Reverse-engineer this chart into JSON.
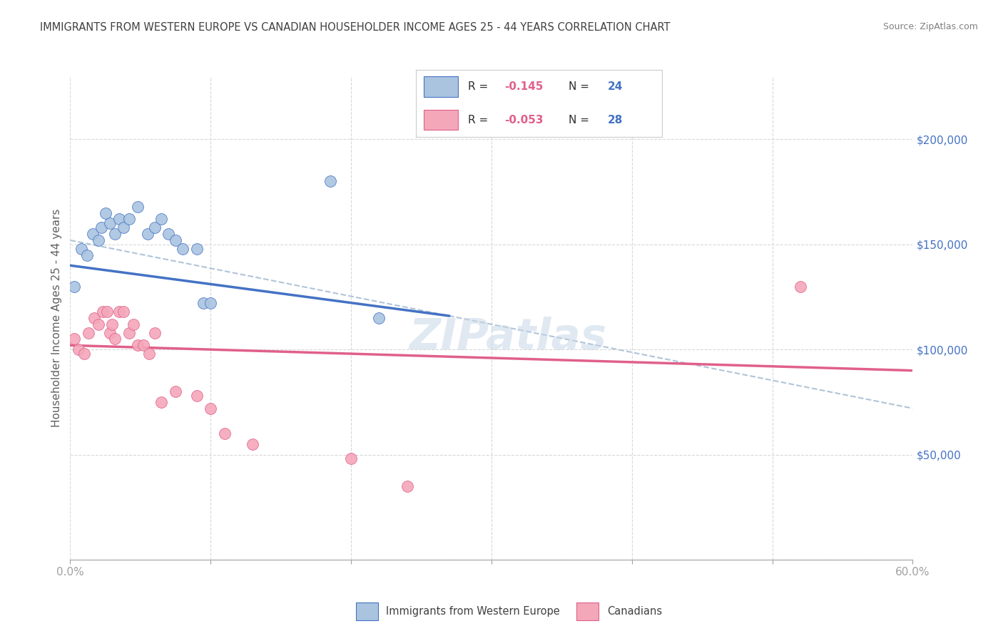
{
  "title": "IMMIGRANTS FROM WESTERN EUROPE VS CANADIAN HOUSEHOLDER INCOME AGES 25 - 44 YEARS CORRELATION CHART",
  "source": "Source: ZipAtlas.com",
  "ylabel": "Householder Income Ages 25 - 44 years",
  "xlim": [
    0.0,
    0.6
  ],
  "ylim": [
    0,
    230000
  ],
  "xticks": [
    0.0,
    0.1,
    0.2,
    0.3,
    0.4,
    0.5,
    0.6
  ],
  "xticklabels": [
    "0.0%",
    "",
    "",
    "",
    "",
    "",
    "60.0%"
  ],
  "yticks_right": [
    0,
    50000,
    100000,
    150000,
    200000
  ],
  "ytick_labels_right": [
    "",
    "$50,000",
    "$100,000",
    "$150,000",
    "$200,000"
  ],
  "legend1_R": "-0.145",
  "legend1_N": "24",
  "legend2_R": "-0.053",
  "legend2_N": "28",
  "blue_scatter_x": [
    0.003,
    0.008,
    0.012,
    0.016,
    0.02,
    0.022,
    0.025,
    0.028,
    0.032,
    0.035,
    0.038,
    0.042,
    0.048,
    0.055,
    0.06,
    0.065,
    0.07,
    0.075,
    0.08,
    0.09,
    0.095,
    0.1,
    0.185,
    0.22
  ],
  "blue_scatter_y": [
    130000,
    148000,
    145000,
    155000,
    152000,
    158000,
    165000,
    160000,
    155000,
    162000,
    158000,
    162000,
    168000,
    155000,
    158000,
    162000,
    155000,
    152000,
    148000,
    148000,
    122000,
    122000,
    180000,
    115000
  ],
  "pink_scatter_x": [
    0.003,
    0.006,
    0.01,
    0.013,
    0.017,
    0.02,
    0.023,
    0.026,
    0.028,
    0.03,
    0.032,
    0.035,
    0.038,
    0.042,
    0.045,
    0.048,
    0.052,
    0.056,
    0.06,
    0.065,
    0.075,
    0.09,
    0.1,
    0.11,
    0.13,
    0.2,
    0.24,
    0.52
  ],
  "pink_scatter_y": [
    105000,
    100000,
    98000,
    108000,
    115000,
    112000,
    118000,
    118000,
    108000,
    112000,
    105000,
    118000,
    118000,
    108000,
    112000,
    102000,
    102000,
    98000,
    108000,
    75000,
    80000,
    78000,
    72000,
    60000,
    55000,
    48000,
    35000,
    130000
  ],
  "blue_line_x": [
    0.0,
    0.27
  ],
  "blue_line_y": [
    140000,
    116000
  ],
  "pink_line_x": [
    0.0,
    0.6
  ],
  "pink_line_y": [
    102000,
    90000
  ],
  "dash_line_x": [
    0.0,
    0.6
  ],
  "dash_line_y": [
    152000,
    72000
  ],
  "bg_color": "#ffffff",
  "blue_color": "#aac4e0",
  "blue_line_color": "#4472c4",
  "pink_color": "#f4a7b9",
  "pink_line_color": "#e0608a",
  "dash_color": "#b0c4d8",
  "grid_color": "#d8d8d8",
  "title_color": "#404040",
  "right_label_color": "#4472c4",
  "legend_R_color": "#e0608a",
  "legend_N_color": "#4472c4",
  "scatter_size": 130
}
